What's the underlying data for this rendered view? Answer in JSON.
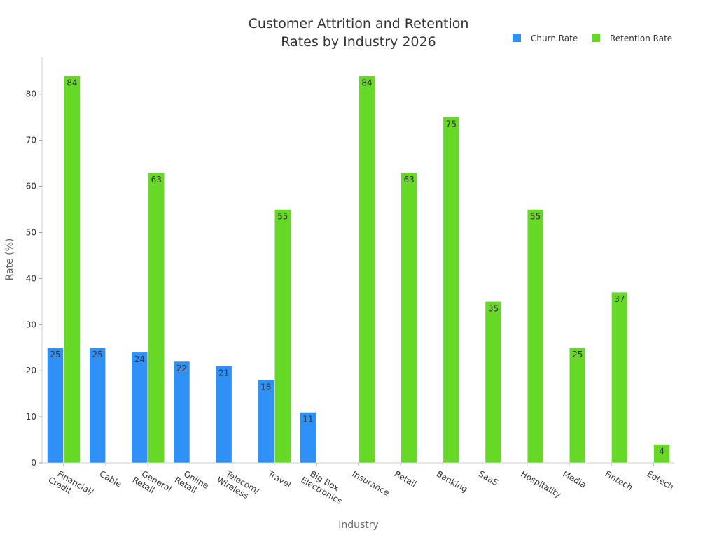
{
  "chart_data": {
    "type": "bar",
    "title": "Customer Attrition and Retention Rates by Industry 2026",
    "title_lines": [
      "Customer Attrition and Retention",
      "Rates by Industry 2026"
    ],
    "xlabel": "Industry",
    "ylabel": "Rate (%)",
    "ylim": [
      0,
      88
    ],
    "yticks": [
      0,
      10,
      20,
      30,
      40,
      50,
      60,
      70,
      80
    ],
    "grid": false,
    "legend_position": "top-right",
    "categories": [
      [
        "Financial/",
        "Credit"
      ],
      [
        "Cable"
      ],
      [
        "General",
        "Retail"
      ],
      [
        "Online",
        "Retail"
      ],
      [
        "Telecom/",
        "Wireless"
      ],
      [
        "Travel"
      ],
      [
        "Big Box",
        "Electronics"
      ],
      [
        "Insurance"
      ],
      [
        "Retail"
      ],
      [
        "Banking"
      ],
      [
        "SaaS"
      ],
      [
        "Hospitality"
      ],
      [
        "Media"
      ],
      [
        "Fintech"
      ],
      [
        "Edtech"
      ]
    ],
    "series": [
      {
        "name": "Churn Rate",
        "color": "#2f90f5",
        "values": [
          25,
          25,
          24,
          22,
          21,
          18,
          11,
          null,
          null,
          null,
          null,
          null,
          null,
          null,
          null
        ]
      },
      {
        "name": "Retention Rate",
        "color": "#66d926",
        "values": [
          84,
          null,
          63,
          null,
          null,
          55,
          null,
          84,
          63,
          75,
          35,
          55,
          25,
          37,
          4
        ]
      }
    ]
  }
}
